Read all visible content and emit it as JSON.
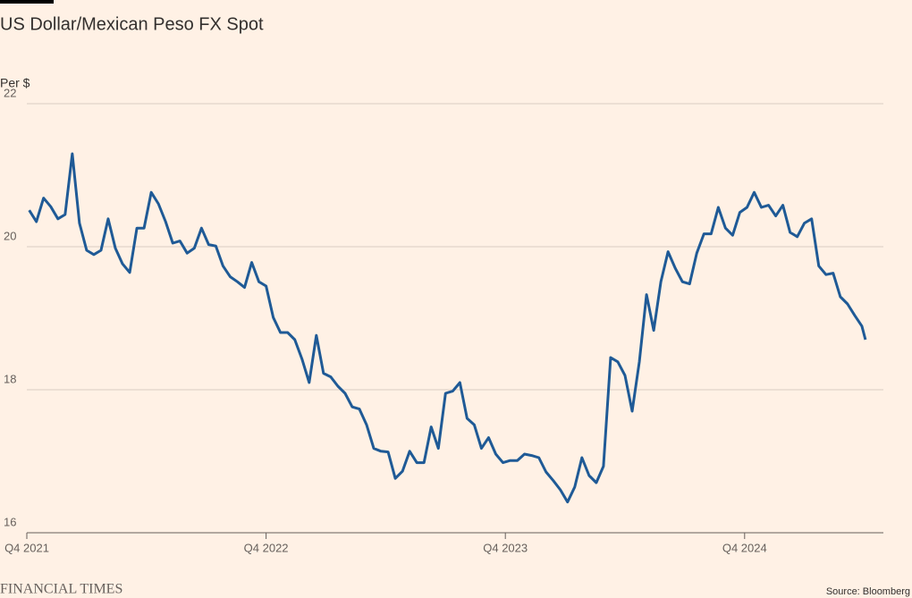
{
  "chart_data": {
    "type": "line",
    "title": "US Dollar/Mexican Peso FX Spot",
    "y_label": "Per $",
    "source": "Source: Bloomberg",
    "brand": "FINANCIAL TIMES",
    "x": [
      2021.76,
      2021.79,
      2021.82,
      2021.85,
      2021.88,
      2021.91,
      2021.94,
      2021.97,
      2022.0,
      2022.03,
      2022.06,
      2022.09,
      2022.12,
      2022.15,
      2022.18,
      2022.21,
      2022.24,
      2022.27,
      2022.3,
      2022.33,
      2022.36,
      2022.39,
      2022.42,
      2022.45,
      2022.48,
      2022.51,
      2022.54,
      2022.57,
      2022.6,
      2022.63,
      2022.66,
      2022.69,
      2022.72,
      2022.75,
      2022.78,
      2022.81,
      2022.84,
      2022.87,
      2022.9,
      2022.93,
      2022.96,
      2022.99,
      2023.02,
      2023.05,
      2023.08,
      2023.11,
      2023.14,
      2023.17,
      2023.2,
      2023.23,
      2023.26,
      2023.29,
      2023.32,
      2023.35,
      2023.38,
      2023.41,
      2023.44,
      2023.47,
      2023.5,
      2023.53,
      2023.56,
      2023.59,
      2023.62,
      2023.65,
      2023.68,
      2023.71,
      2023.74,
      2023.77,
      2023.8,
      2023.83,
      2023.86,
      2023.89,
      2023.92,
      2023.95,
      2023.98,
      2024.01,
      2024.04,
      2024.07,
      2024.1,
      2024.13,
      2024.16,
      2024.19,
      2024.22,
      2024.25,
      2024.28,
      2024.31,
      2024.34,
      2024.37,
      2024.4,
      2024.43,
      2024.46,
      2024.49,
      2024.52,
      2024.55,
      2024.58,
      2024.61,
      2024.64,
      2024.67,
      2024.7,
      2024.73,
      2024.76,
      2024.79,
      2024.82,
      2024.85,
      2024.88,
      2024.91,
      2024.94,
      2024.97,
      2025.0,
      2025.03,
      2025.06,
      2025.09,
      2025.12,
      2025.15,
      2025.18,
      2025.21,
      2025.24,
      2025.255
    ],
    "series": [
      {
        "name": "USD/MXN",
        "color": "#1f5a96",
        "values": [
          20.51,
          20.35,
          20.68,
          20.56,
          20.39,
          20.45,
          21.3,
          20.33,
          19.95,
          19.89,
          19.95,
          20.39,
          19.98,
          19.76,
          19.64,
          20.26,
          20.26,
          20.76,
          20.6,
          20.35,
          20.05,
          20.08,
          19.91,
          19.98,
          20.26,
          20.03,
          20.01,
          19.73,
          19.58,
          19.51,
          19.43,
          19.78,
          19.51,
          19.45,
          19.01,
          18.8,
          18.8,
          18.7,
          18.43,
          18.1,
          18.76,
          18.23,
          18.18,
          18.05,
          17.95,
          17.76,
          17.73,
          17.51,
          17.18,
          17.14,
          17.13,
          16.76,
          16.86,
          17.14,
          16.98,
          16.98,
          17.48,
          17.18,
          17.95,
          17.98,
          18.1,
          17.6,
          17.51,
          17.18,
          17.33,
          17.1,
          16.98,
          17.01,
          17.01,
          17.1,
          17.08,
          17.05,
          16.85,
          16.73,
          16.6,
          16.43,
          16.64,
          17.05,
          16.8,
          16.7,
          16.93,
          18.45,
          18.39,
          18.2,
          17.7,
          18.39,
          19.33,
          18.83,
          19.51,
          19.93,
          19.7,
          19.51,
          19.48,
          19.91,
          20.18,
          20.18,
          20.55,
          20.26,
          20.16,
          20.48,
          20.55,
          20.76,
          20.55,
          20.58,
          20.43,
          20.58,
          20.2,
          20.14,
          20.33,
          20.39,
          19.73,
          19.61,
          19.63,
          19.3,
          19.2,
          19.04,
          18.89,
          18.7
        ]
      }
    ],
    "xlim": [
      2021.75,
      2025.33
    ],
    "xticks": [
      {
        "value": 2021.75,
        "label": "Q4 2021"
      },
      {
        "value": 2022.75,
        "label": "Q4 2022"
      },
      {
        "value": 2023.75,
        "label": "Q4 2023"
      },
      {
        "value": 2024.75,
        "label": "Q4 2024"
      }
    ],
    "ylim": [
      16,
      22
    ],
    "yticks": [
      16,
      18,
      20,
      22
    ],
    "grid": true
  }
}
